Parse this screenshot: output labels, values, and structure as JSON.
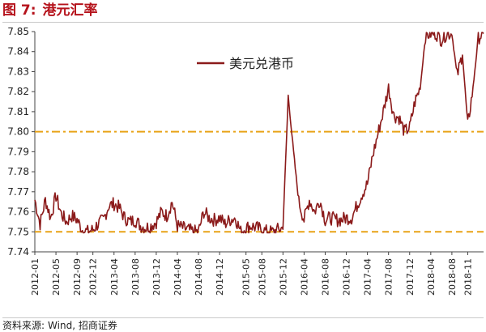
{
  "figure": {
    "number": "图 7:",
    "title": "港元汇率"
  },
  "source": {
    "prefix": "资料来源:",
    "text": "Wind, 招商证券"
  },
  "chart_data": {
    "type": "line",
    "title": "",
    "xlabel": "",
    "ylabel": "",
    "ylim": [
      7.74,
      7.85
    ],
    "xlim": [
      "2012-01",
      "2019-02"
    ],
    "y_ticks": [
      "7.85",
      "7.84",
      "7.83",
      "7.82",
      "7.81",
      "7.80",
      "7.79",
      "7.78",
      "7.77",
      "7.76",
      "7.75",
      "7.74"
    ],
    "x_ticks": [
      "2012-01",
      "2012-05",
      "2012-09",
      "2012-12",
      "2013-04",
      "2013-08",
      "2013-12",
      "2014-04",
      "2014-08",
      "2014-12",
      "2015-05",
      "2015-08",
      "2015-12",
      "2016-04",
      "2016-08",
      "2016-12",
      "2017-04",
      "2017-08",
      "2017-12",
      "2018-04",
      "2018-08",
      "2018-11"
    ],
    "grid": false,
    "legend_position": "top-center",
    "series": [
      {
        "name": "美元兑港币",
        "color": "#8b1a1a",
        "points": [
          [
            "2012-01",
            7.766
          ],
          [
            "2012-02",
            7.754
          ],
          [
            "2012-03",
            7.766
          ],
          [
            "2012-04",
            7.757
          ],
          [
            "2012-05",
            7.768
          ],
          [
            "2012-06",
            7.759
          ],
          [
            "2012-07",
            7.755
          ],
          [
            "2012-08",
            7.758
          ],
          [
            "2012-09",
            7.756
          ],
          [
            "2012-10",
            7.751
          ],
          [
            "2012-11",
            7.75
          ],
          [
            "2012-12",
            7.751
          ],
          [
            "2013-01",
            7.754
          ],
          [
            "2013-02",
            7.756
          ],
          [
            "2013-03",
            7.763
          ],
          [
            "2013-04",
            7.764
          ],
          [
            "2013-05",
            7.762
          ],
          [
            "2013-06",
            7.757
          ],
          [
            "2013-07",
            7.755
          ],
          [
            "2013-08",
            7.756
          ],
          [
            "2013-09",
            7.753
          ],
          [
            "2013-10",
            7.752
          ],
          [
            "2013-11",
            7.753
          ],
          [
            "2013-12",
            7.755
          ],
          [
            "2014-01",
            7.76
          ],
          [
            "2014-02",
            7.758
          ],
          [
            "2014-03",
            7.765
          ],
          [
            "2014-04",
            7.753
          ],
          [
            "2014-05",
            7.752
          ],
          [
            "2014-06",
            7.751
          ],
          [
            "2014-07",
            7.75
          ],
          [
            "2014-08",
            7.75
          ],
          [
            "2014-09",
            7.76
          ],
          [
            "2014-10",
            7.757
          ],
          [
            "2014-11",
            7.756
          ],
          [
            "2014-12",
            7.757
          ],
          [
            "2015-01",
            7.754
          ],
          [
            "2015-02",
            7.756
          ],
          [
            "2015-03",
            7.757
          ],
          [
            "2015-04",
            7.75
          ],
          [
            "2015-05",
            7.752
          ],
          [
            "2015-06",
            7.753
          ],
          [
            "2015-07",
            7.752
          ],
          [
            "2015-08",
            7.751
          ],
          [
            "2015-09",
            7.75
          ],
          [
            "2015-10",
            7.75
          ],
          [
            "2015-11",
            7.751
          ],
          [
            "2015-12",
            7.752
          ],
          [
            "2016-01",
            7.818
          ],
          [
            "2016-02",
            7.79
          ],
          [
            "2016-03",
            7.765
          ],
          [
            "2016-04",
            7.756
          ],
          [
            "2016-05",
            7.766
          ],
          [
            "2016-06",
            7.76
          ],
          [
            "2016-07",
            7.766
          ],
          [
            "2016-08",
            7.756
          ],
          [
            "2016-09",
            7.757
          ],
          [
            "2016-10",
            7.756
          ],
          [
            "2016-11",
            7.756
          ],
          [
            "2016-12",
            7.757
          ],
          [
            "2017-01",
            7.757
          ],
          [
            "2017-02",
            7.763
          ],
          [
            "2017-03",
            7.769
          ],
          [
            "2017-04",
            7.774
          ],
          [
            "2017-05",
            7.788
          ],
          [
            "2017-06",
            7.799
          ],
          [
            "2017-07",
            7.81
          ],
          [
            "2017-08",
            7.822
          ],
          [
            "2017-09",
            7.808
          ],
          [
            "2017-10",
            7.807
          ],
          [
            "2017-11",
            7.8
          ],
          [
            "2017-12",
            7.802
          ],
          [
            "2018-01",
            7.815
          ],
          [
            "2018-02",
            7.822
          ],
          [
            "2018-03",
            7.848
          ],
          [
            "2018-04",
            7.849
          ],
          [
            "2018-05",
            7.849
          ],
          [
            "2018-06",
            7.846
          ],
          [
            "2018-07",
            7.849
          ],
          [
            "2018-08",
            7.849
          ],
          [
            "2018-09",
            7.828
          ],
          [
            "2018-10",
            7.839
          ],
          [
            "2018-11",
            7.803
          ],
          [
            "2018-12",
            7.822
          ],
          [
            "2019-01",
            7.847
          ],
          [
            "2019-02",
            7.849
          ]
        ]
      }
    ],
    "reference_lines": [
      {
        "y": 7.8,
        "color": "#e8a317",
        "style": "dash-dot"
      },
      {
        "y": 7.75,
        "color": "#e8a317",
        "style": "dashed"
      }
    ]
  }
}
